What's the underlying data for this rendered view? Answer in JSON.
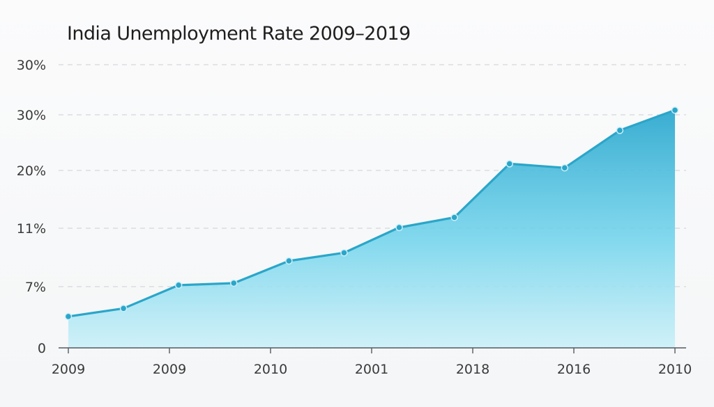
{
  "chart_data": {
    "type": "area",
    "title": "India Unemployment Rate 2009–2019",
    "xlabel": "",
    "ylabel": "",
    "x_tick_labels": [
      "2009",
      "2009",
      "2010",
      "2001",
      "2018",
      "2016",
      "2010"
    ],
    "y_tick_labels": [
      "0",
      "7%",
      "11%",
      "20%",
      "30%",
      "30%"
    ],
    "values": [
      3.1,
      3.9,
      6.2,
      6.4,
      8.6,
      9.4,
      11.9,
      12.9,
      18.2,
      17.8,
      21.5,
      23.5
    ],
    "ylim": [
      0,
      26
    ],
    "grid": true,
    "legend": "none",
    "colors": {
      "line": "#2aa6c9",
      "fill_top": "#35b2d6",
      "fill_bottom": "#bfeef8"
    }
  }
}
